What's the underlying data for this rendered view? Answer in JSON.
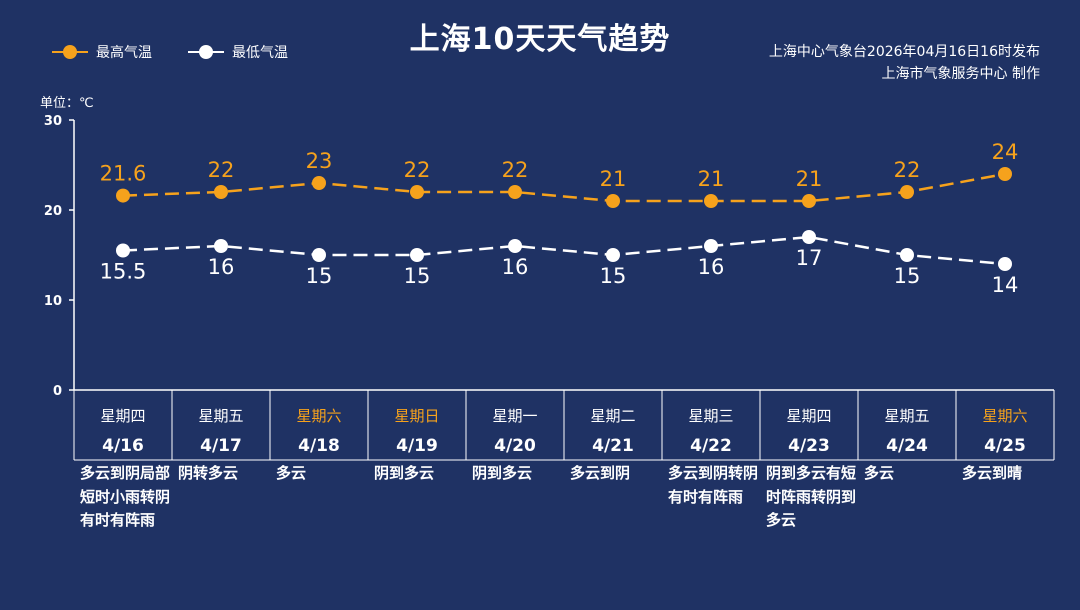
{
  "header": {
    "title": "上海10天天气趋势",
    "source_line1": "上海中心气象台2026年04月16日16时发布",
    "source_line2": "上海市气象服务中心  制作"
  },
  "unit_label": "单位：℃",
  "colors": {
    "background": "#1f3264",
    "high": "#f6a21c",
    "low": "#ffffff",
    "weekend": "#f6a21c"
  },
  "chart_data": {
    "type": "line",
    "categories": [
      "4/16",
      "4/17",
      "4/18",
      "4/19",
      "4/20",
      "4/21",
      "4/22",
      "4/23",
      "4/24",
      "4/25"
    ],
    "weekdays": [
      "星期四",
      "星期五",
      "星期六",
      "星期日",
      "星期一",
      "星期二",
      "星期三",
      "星期四",
      "星期五",
      "星期六"
    ],
    "weekend": [
      false,
      false,
      true,
      true,
      false,
      false,
      false,
      false,
      false,
      true
    ],
    "weather": [
      "多云到阴局部短时小雨转阴有时有阵雨",
      "阴转多云",
      "多云",
      "阴到多云",
      "阴到多云",
      "多云到阴",
      "多云到阴转阴有时有阵雨",
      "阴到多云有短时阵雨转阴到多云",
      "多云",
      "多云到晴"
    ],
    "series": [
      {
        "name": "最高气温",
        "values": [
          21.6,
          22,
          23,
          22,
          22,
          21,
          21,
          21,
          22,
          24
        ],
        "color": "#f6a21c"
      },
      {
        "name": "最低气温",
        "values": [
          15.5,
          16,
          15,
          15,
          16,
          15,
          16,
          17,
          15,
          14
        ],
        "color": "#ffffff"
      }
    ],
    "ylim": [
      0,
      30
    ],
    "yticks": [
      0,
      10,
      20,
      30
    ],
    "legend": "top-left"
  }
}
